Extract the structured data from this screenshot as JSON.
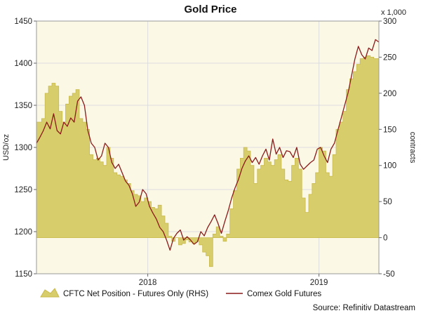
{
  "chart_data": {
    "type": "area+line",
    "title": "Gold Price",
    "ylabel_left": "USD/oz",
    "ylabel_right": "contracts",
    "right_multiplier": "x 1,000",
    "source": "Source: Refinitiv Datastream",
    "colors": {
      "area_fill": "#d8cd6b",
      "area_edge": "#c8b94a",
      "line": "#8b1a1a",
      "plot_bg": "#fbf8e6",
      "grid": "#dddddd"
    },
    "ylim_left": [
      1150,
      1450
    ],
    "left_ticks": [
      "1450",
      "1400",
      "1350",
      "1300",
      "1250",
      "1200",
      "1150"
    ],
    "left_tick_values": [
      1450,
      1400,
      1350,
      1300,
      1250,
      1200,
      1150
    ],
    "ylim_right": [
      -50,
      300
    ],
    "right_ticks": [
      "300",
      "250",
      "200",
      "150",
      "100",
      "50",
      "0",
      "-50"
    ],
    "right_tick_values": [
      300,
      250,
      200,
      150,
      100,
      50,
      0,
      -50
    ],
    "xlim": [
      2017.35,
      2019.35
    ],
    "x_ticks": [
      {
        "label": "2018",
        "value": 2018.0
      },
      {
        "label": "2019",
        "value": 2019.0
      }
    ],
    "series": [
      {
        "name": "CFTC Net Position - Futures Only (RHS)",
        "kind": "step-area",
        "axis": "right",
        "points": [
          [
            2017.35,
            160
          ],
          [
            2017.38,
            165
          ],
          [
            2017.4,
            200
          ],
          [
            2017.42,
            210
          ],
          [
            2017.44,
            214
          ],
          [
            2017.46,
            210
          ],
          [
            2017.48,
            175
          ],
          [
            2017.5,
            160
          ],
          [
            2017.52,
            185
          ],
          [
            2017.54,
            196
          ],
          [
            2017.56,
            200
          ],
          [
            2017.58,
            205
          ],
          [
            2017.6,
            165
          ],
          [
            2017.62,
            160
          ],
          [
            2017.64,
            150
          ],
          [
            2017.66,
            115
          ],
          [
            2017.68,
            108
          ],
          [
            2017.7,
            110
          ],
          [
            2017.72,
            105
          ],
          [
            2017.74,
            100
          ],
          [
            2017.76,
            125
          ],
          [
            2017.78,
            110
          ],
          [
            2017.8,
            90
          ],
          [
            2017.82,
            87
          ],
          [
            2017.84,
            85
          ],
          [
            2017.86,
            80
          ],
          [
            2017.88,
            75
          ],
          [
            2017.9,
            65
          ],
          [
            2017.92,
            60
          ],
          [
            2017.94,
            58
          ],
          [
            2017.96,
            50
          ],
          [
            2017.98,
            55
          ],
          [
            2018.0,
            50
          ],
          [
            2018.02,
            42
          ],
          [
            2018.04,
            40
          ],
          [
            2018.06,
            45
          ],
          [
            2018.08,
            30
          ],
          [
            2018.1,
            20
          ],
          [
            2018.12,
            2
          ],
          [
            2018.14,
            -5
          ],
          [
            2018.16,
            0
          ],
          [
            2018.18,
            -10
          ],
          [
            2018.2,
            -8
          ],
          [
            2018.22,
            -3
          ],
          [
            2018.24,
            -6
          ],
          [
            2018.26,
            -8
          ],
          [
            2018.28,
            -5
          ],
          [
            2018.3,
            -10
          ],
          [
            2018.32,
            -20
          ],
          [
            2018.34,
            -25
          ],
          [
            2018.36,
            -40
          ],
          [
            2018.38,
            5
          ],
          [
            2018.4,
            15
          ],
          [
            2018.42,
            2
          ],
          [
            2018.44,
            -5
          ],
          [
            2018.46,
            5
          ],
          [
            2018.48,
            40
          ],
          [
            2018.5,
            65
          ],
          [
            2018.52,
            95
          ],
          [
            2018.54,
            110
          ],
          [
            2018.56,
            125
          ],
          [
            2018.58,
            120
          ],
          [
            2018.6,
            100
          ],
          [
            2018.62,
            75
          ],
          [
            2018.64,
            95
          ],
          [
            2018.66,
            100
          ],
          [
            2018.68,
            110
          ],
          [
            2018.7,
            105
          ],
          [
            2018.72,
            100
          ],
          [
            2018.74,
            108
          ],
          [
            2018.76,
            115
          ],
          [
            2018.78,
            95
          ],
          [
            2018.8,
            80
          ],
          [
            2018.82,
            78
          ],
          [
            2018.84,
            100
          ],
          [
            2018.86,
            110
          ],
          [
            2018.88,
            95
          ],
          [
            2018.9,
            55
          ],
          [
            2018.92,
            35
          ],
          [
            2018.94,
            60
          ],
          [
            2018.96,
            75
          ],
          [
            2018.98,
            90
          ],
          [
            2019.0,
            125
          ],
          [
            2019.02,
            120
          ],
          [
            2019.04,
            90
          ],
          [
            2019.06,
            85
          ],
          [
            2019.08,
            115
          ],
          [
            2019.1,
            150
          ],
          [
            2019.12,
            160
          ],
          [
            2019.14,
            175
          ],
          [
            2019.16,
            205
          ],
          [
            2019.18,
            220
          ],
          [
            2019.2,
            230
          ],
          [
            2019.22,
            240
          ],
          [
            2019.24,
            248
          ],
          [
            2019.26,
            250
          ],
          [
            2019.28,
            252
          ],
          [
            2019.3,
            250
          ],
          [
            2019.32,
            248
          ],
          [
            2019.35,
            248
          ]
        ]
      },
      {
        "name": "Comex Gold Futures",
        "kind": "line",
        "axis": "left",
        "points": [
          [
            2017.35,
            1305
          ],
          [
            2017.37,
            1312
          ],
          [
            2017.39,
            1320
          ],
          [
            2017.41,
            1330
          ],
          [
            2017.43,
            1322
          ],
          [
            2017.45,
            1340
          ],
          [
            2017.47,
            1320
          ],
          [
            2017.49,
            1316
          ],
          [
            2017.51,
            1330
          ],
          [
            2017.53,
            1325
          ],
          [
            2017.55,
            1335
          ],
          [
            2017.57,
            1330
          ],
          [
            2017.59,
            1355
          ],
          [
            2017.61,
            1360
          ],
          [
            2017.63,
            1350
          ],
          [
            2017.65,
            1320
          ],
          [
            2017.67,
            1305
          ],
          [
            2017.69,
            1300
          ],
          [
            2017.71,
            1285
          ],
          [
            2017.73,
            1290
          ],
          [
            2017.75,
            1305
          ],
          [
            2017.77,
            1300
          ],
          [
            2017.79,
            1282
          ],
          [
            2017.81,
            1275
          ],
          [
            2017.83,
            1280
          ],
          [
            2017.85,
            1270
          ],
          [
            2017.87,
            1260
          ],
          [
            2017.89,
            1255
          ],
          [
            2017.91,
            1245
          ],
          [
            2017.93,
            1230
          ],
          [
            2017.95,
            1235
          ],
          [
            2017.97,
            1250
          ],
          [
            2017.99,
            1245
          ],
          [
            2018.01,
            1230
          ],
          [
            2018.03,
            1222
          ],
          [
            2018.05,
            1215
          ],
          [
            2018.07,
            1205
          ],
          [
            2018.09,
            1200
          ],
          [
            2018.11,
            1190
          ],
          [
            2018.13,
            1178
          ],
          [
            2018.15,
            1192
          ],
          [
            2018.17,
            1198
          ],
          [
            2018.19,
            1202
          ],
          [
            2018.21,
            1190
          ],
          [
            2018.23,
            1194
          ],
          [
            2018.25,
            1190
          ],
          [
            2018.27,
            1185
          ],
          [
            2018.29,
            1188
          ],
          [
            2018.31,
            1200
          ],
          [
            2018.33,
            1195
          ],
          [
            2018.35,
            1205
          ],
          [
            2018.37,
            1212
          ],
          [
            2018.39,
            1220
          ],
          [
            2018.41,
            1210
          ],
          [
            2018.43,
            1198
          ],
          [
            2018.45,
            1212
          ],
          [
            2018.47,
            1225
          ],
          [
            2018.49,
            1240
          ],
          [
            2018.51,
            1252
          ],
          [
            2018.53,
            1262
          ],
          [
            2018.55,
            1275
          ],
          [
            2018.57,
            1284
          ],
          [
            2018.59,
            1290
          ],
          [
            2018.61,
            1282
          ],
          [
            2018.63,
            1288
          ],
          [
            2018.65,
            1280
          ],
          [
            2018.67,
            1290
          ],
          [
            2018.69,
            1298
          ],
          [
            2018.71,
            1285
          ],
          [
            2018.73,
            1310
          ],
          [
            2018.75,
            1292
          ],
          [
            2018.77,
            1300
          ],
          [
            2018.79,
            1288
          ],
          [
            2018.81,
            1296
          ],
          [
            2018.83,
            1295
          ],
          [
            2018.85,
            1288
          ],
          [
            2018.87,
            1300
          ],
          [
            2018.89,
            1280
          ],
          [
            2018.91,
            1274
          ],
          [
            2018.93,
            1278
          ],
          [
            2018.95,
            1282
          ],
          [
            2018.97,
            1285
          ],
          [
            2018.99,
            1298
          ],
          [
            2019.01,
            1300
          ],
          [
            2019.03,
            1290
          ],
          [
            2019.05,
            1282
          ],
          [
            2019.07,
            1298
          ],
          [
            2019.09,
            1305
          ],
          [
            2019.11,
            1320
          ],
          [
            2019.13,
            1335
          ],
          [
            2019.15,
            1350
          ],
          [
            2019.17,
            1365
          ],
          [
            2019.19,
            1385
          ],
          [
            2019.21,
            1405
          ],
          [
            2019.23,
            1420
          ],
          [
            2019.25,
            1410
          ],
          [
            2019.27,
            1405
          ],
          [
            2019.29,
            1418
          ],
          [
            2019.31,
            1415
          ],
          [
            2019.33,
            1428
          ],
          [
            2019.35,
            1425
          ]
        ]
      }
    ],
    "legend": [
      {
        "label": "CFTC Net Position - Futures Only (RHS)",
        "swatch": "area"
      },
      {
        "label": "Comex Gold Futures",
        "swatch": "line"
      }
    ]
  }
}
